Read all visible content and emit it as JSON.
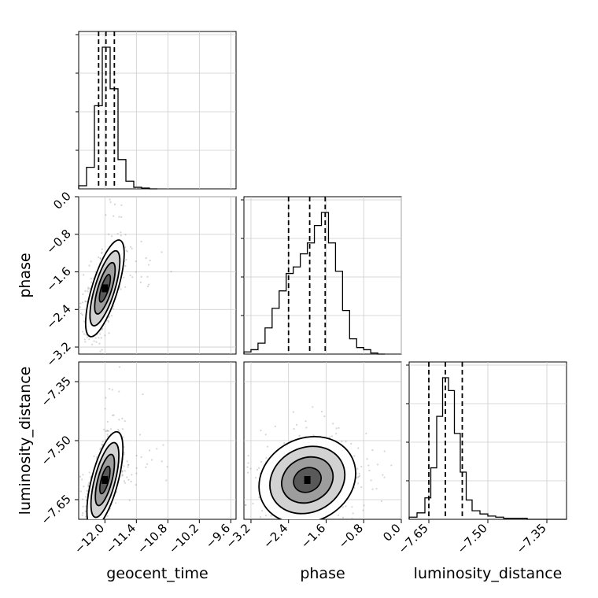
{
  "chart_data": {
    "type": "corner",
    "grid": true,
    "parameters": [
      {
        "name": "geocent_time",
        "range": [
          -12.5,
          -9.5
        ],
        "ticks": [
          -12.0,
          -11.4,
          -10.8,
          -10.2,
          -9.6
        ],
        "tick_labels": [
          "−12.0",
          "−11.4",
          "−10.8",
          "−10.2",
          "−9.6"
        ]
      },
      {
        "name": "phase",
        "range": [
          -3.35,
          0.0
        ],
        "ticks": [
          -3.2,
          -2.4,
          -1.6,
          -0.8,
          0.0
        ],
        "tick_labels": [
          "−3.2",
          "−2.4",
          "−1.6",
          "−0.8",
          "0.0"
        ]
      },
      {
        "name": "luminosity_distance",
        "range": [
          -7.7,
          -7.3
        ],
        "ticks": [
          -7.65,
          -7.5,
          -7.35
        ],
        "tick_labels": [
          "−7.65",
          "−7.50",
          "−7.35"
        ]
      }
    ],
    "histograms": [
      {
        "parameter": "geocent_time",
        "bin_edges": [
          -12.5,
          -12.35,
          -12.2,
          -12.05,
          -11.9,
          -11.75,
          -11.6,
          -11.45,
          -11.3,
          -11.15,
          -11.0
        ],
        "counts": [
          4,
          28,
          108,
          184,
          130,
          38,
          10,
          2,
          1,
          0
        ],
        "quantiles": [
          -12.12,
          -11.98,
          -11.82
        ]
      },
      {
        "parameter": "phase",
        "bin_edges": [
          -3.35,
          -3.2,
          -3.05,
          -2.9,
          -2.75,
          -2.6,
          -2.45,
          -2.3,
          -2.15,
          -2.0,
          -1.85,
          -1.7,
          -1.55,
          -1.4,
          -1.25,
          -1.1,
          -0.95,
          -0.8,
          -0.65,
          -0.5,
          -0.35
        ],
        "counts": [
          2,
          4,
          10,
          24,
          42,
          58,
          74,
          80,
          92,
          102,
          118,
          130,
          102,
          76,
          40,
          14,
          6,
          4,
          1,
          0
        ],
        "quantiles": [
          -2.4,
          -1.95,
          -1.62
        ]
      },
      {
        "parameter": "luminosity_distance",
        "bin_edges": [
          -7.7,
          -7.68,
          -7.66,
          -7.645,
          -7.63,
          -7.615,
          -7.6,
          -7.585,
          -7.57,
          -7.555,
          -7.54,
          -7.52,
          -7.5,
          -7.48,
          -7.46,
          -7.44,
          -7.42,
          -7.4,
          -7.38,
          -7.36,
          -7.3
        ],
        "counts": [
          2,
          6,
          20,
          48,
          96,
          132,
          120,
          80,
          44,
          18,
          8,
          5,
          3,
          2,
          1,
          1,
          1,
          0,
          0,
          0
        ],
        "quantiles": [
          -7.65,
          -7.608,
          -7.565
        ]
      }
    ],
    "contours_2d": [
      {
        "x": "geocent_time",
        "y": "phase",
        "center": [
          -12.0,
          -1.95
        ],
        "spread": [
          0.15,
          0.42
        ],
        "correlation": 0.72
      },
      {
        "x": "geocent_time",
        "y": "luminosity_distance",
        "center": [
          -12.0,
          -7.6
        ],
        "spread": [
          0.14,
          0.05
        ],
        "correlation": 0.65
      },
      {
        "x": "phase",
        "y": "luminosity_distance",
        "center": [
          -2.0,
          -7.6
        ],
        "spread": [
          0.42,
          0.045
        ],
        "correlation": 0.15
      }
    ]
  }
}
